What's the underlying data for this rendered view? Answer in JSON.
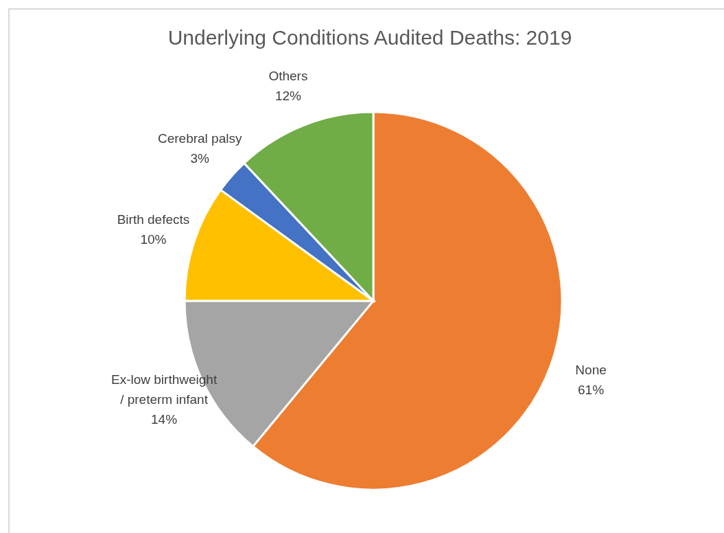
{
  "chart_data": {
    "type": "pie",
    "title": "Underlying Conditions Audited Deaths: 2019",
    "categories": [
      "None",
      "Ex-low birthweight / preterm infant",
      "Birth defects",
      "Cerebral palsy",
      "Others"
    ],
    "values": [
      61,
      14,
      10,
      3,
      12
    ],
    "colors": [
      "#ed7d31",
      "#a5a5a5",
      "#ffc000",
      "#4472c4",
      "#70ad47"
    ],
    "value_labels": [
      "61%",
      "14%",
      "10%",
      "3%",
      "12%"
    ],
    "legend": false
  }
}
